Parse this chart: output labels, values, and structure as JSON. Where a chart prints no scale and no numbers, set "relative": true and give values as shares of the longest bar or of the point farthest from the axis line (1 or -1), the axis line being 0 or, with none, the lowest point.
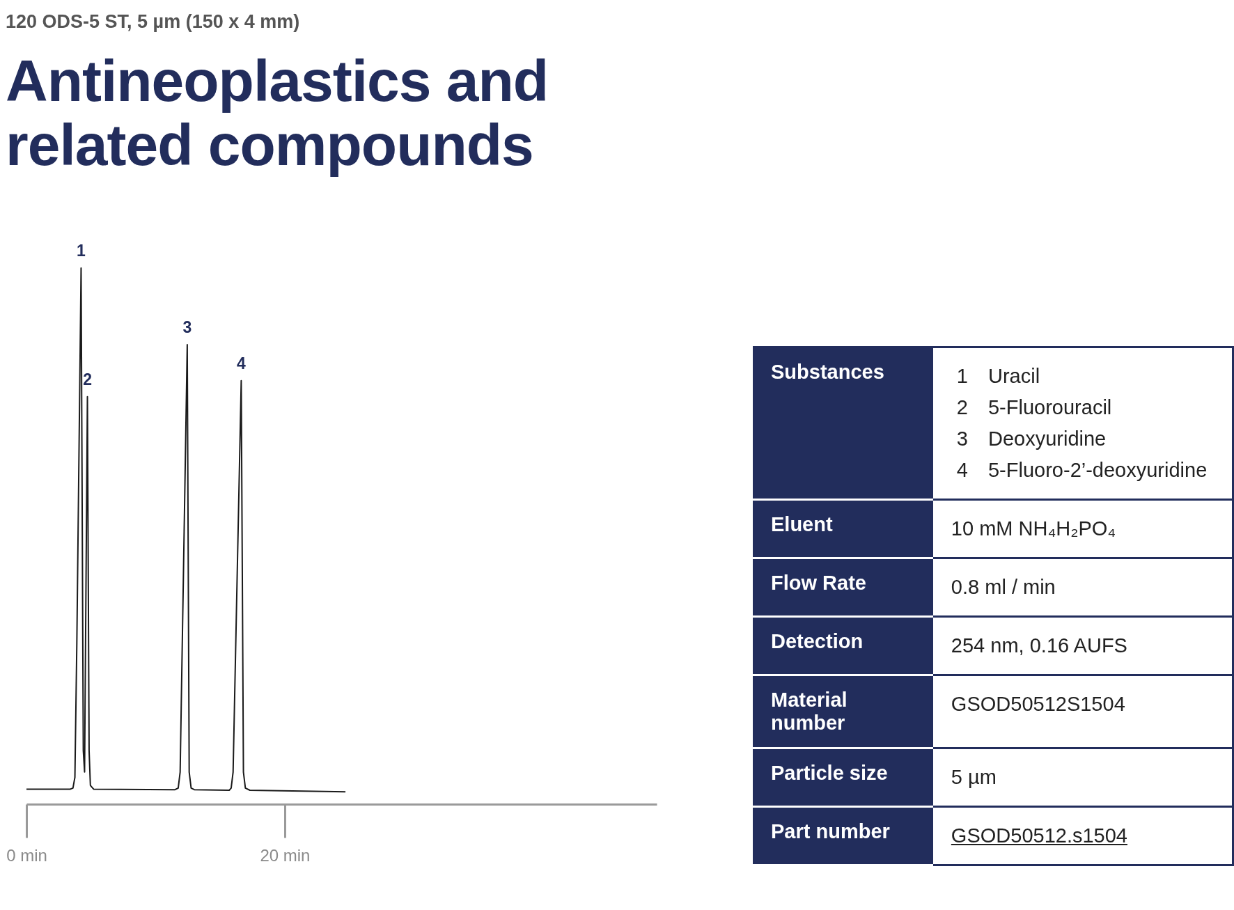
{
  "chart_data": [
    {
      "type": "line",
      "subtitle": "120 ODS-5 ST, 5 µm (150 x 4 mm)",
      "title": "Antineoplastics and related compounds",
      "relative": true,
      "series": [
        {
          "color": "#1a1a1a",
          "x": [
            0,
            3.4,
            3.6,
            3.75,
            3.9,
            4.23,
            4.4,
            4.5,
            4.72,
            4.85,
            4.95,
            5.2,
            11.5,
            11.75,
            11.9,
            12.45,
            12.6,
            12.75,
            13.0,
            15.7,
            15.85,
            16.0,
            16.63,
            16.8,
            16.95,
            17.3,
            24.7
          ],
          "values": [
            0.028,
            0.028,
            0.03,
            0.05,
            0.3,
            1.0,
            0.1,
            0.06,
            0.76,
            0.1,
            0.035,
            0.028,
            0.027,
            0.03,
            0.06,
            0.857,
            0.06,
            0.03,
            0.027,
            0.026,
            0.03,
            0.06,
            0.79,
            0.06,
            0.03,
            0.026,
            0.023
          ]
        }
      ],
      "xlim": [
        0,
        48.8
      ],
      "xticks": [
        {
          "value": 0,
          "label": "0 min"
        },
        {
          "value": 20,
          "label": "20 min"
        }
      ],
      "annotations": [
        {
          "text": "1",
          "x": 4.23,
          "y": 1.0
        },
        {
          "text": "2",
          "x": 4.72,
          "y": 0.76
        },
        {
          "text": "3",
          "x": 12.45,
          "y": 0.857
        },
        {
          "text": "4",
          "x": 16.63,
          "y": 0.79
        }
      ]
    },
    {
      "type": "other",
      "categories": [
        "Substances",
        "Eluent",
        "Flow Rate",
        "Detection",
        "Material number",
        "Particle size",
        "Part number"
      ],
      "annotations": [
        "1 Uracil\n2 5-Fluorouracil\n3 Deoxyuridine\n4 5-Fluoro-2’-deoxyuridine",
        "10 mM NH₄H₂PO₄",
        "0.8 ml / min",
        "254 nm, 0.16 AUFS",
        "GSOD50512S1504",
        "5 µm",
        "GSOD50512.s1504"
      ]
    }
  ]
}
